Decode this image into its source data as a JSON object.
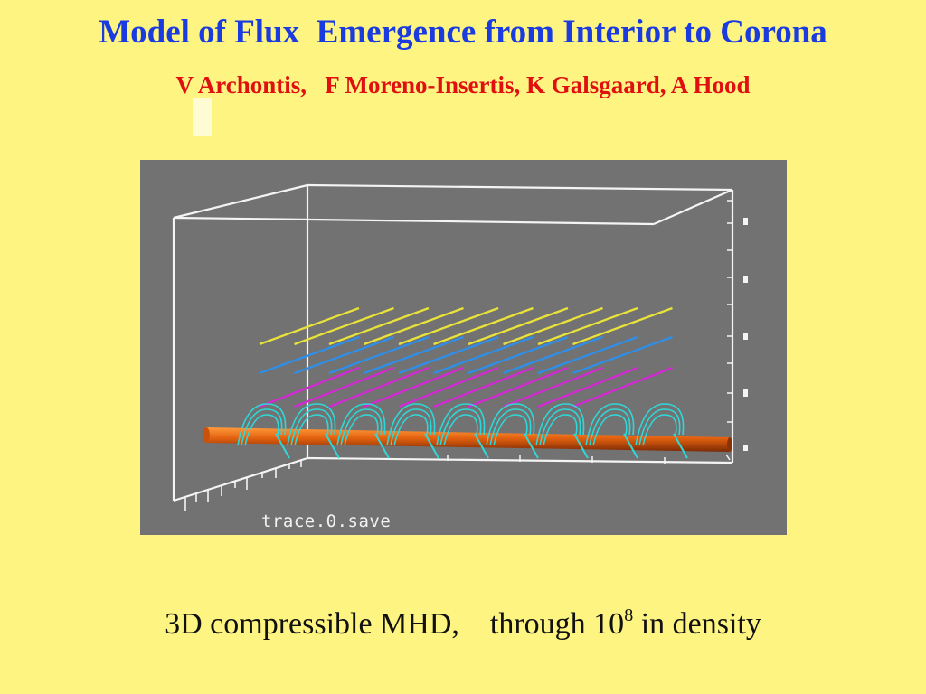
{
  "slide": {
    "title": "Model of Flux  Emergence from Interior to Corona",
    "authors": "V Archontis,   F Moreno-Insertis, K Galsgaard, A Hood",
    "figure_caption": "trace.0.save",
    "summary_prefix": "3D compressible MHD,    through 10",
    "summary_exponent": "8",
    "summary_suffix": " in density"
  },
  "colors": {
    "background": "#fdf482",
    "title": "#1a3be0",
    "authors": "#e01010",
    "viz_background": "#727272",
    "field_lines_top": "#e8e23a",
    "field_lines_mid": "#2f8fe8",
    "field_lines_low": "#d22ad2",
    "helix": "#2fd8d8",
    "flux_tube": "#e2600f"
  }
}
